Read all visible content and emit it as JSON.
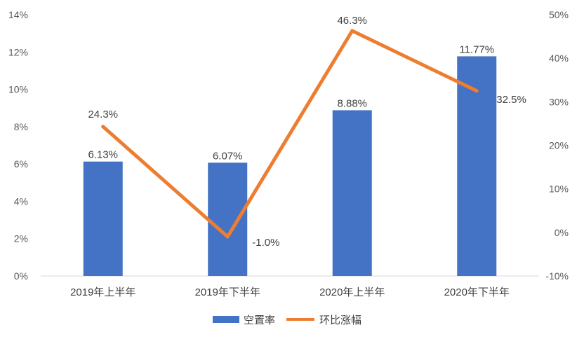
{
  "chart_data": {
    "type": "bar+line",
    "categories": [
      "2019年上半年",
      "2019年下半年",
      "2020年上半年",
      "2020年下半年"
    ],
    "series": [
      {
        "name": "空置率",
        "type": "bar",
        "axis": "left",
        "values": [
          6.13,
          6.07,
          8.88,
          11.77
        ],
        "labels": [
          "6.13%",
          "6.07%",
          "8.88%",
          "11.77%"
        ],
        "color": "#4472C4"
      },
      {
        "name": "环比涨幅",
        "type": "line",
        "axis": "right",
        "values": [
          24.3,
          -1.0,
          46.3,
          32.5
        ],
        "labels": [
          "24.3%",
          "-1.0%",
          "46.3%",
          "32.5%"
        ],
        "color": "#ED7D31"
      }
    ],
    "y_left": {
      "min": 0,
      "max": 14,
      "step": 2,
      "tick_labels": [
        "0%",
        "2%",
        "4%",
        "6%",
        "8%",
        "10%",
        "12%",
        "14%"
      ]
    },
    "y_right": {
      "min": -10,
      "max": 50,
      "step": 10,
      "tick_labels": [
        "-10%",
        "0%",
        "10%",
        "20%",
        "30%",
        "40%",
        "50%"
      ]
    },
    "grid": false,
    "legend": "bottom-center"
  }
}
